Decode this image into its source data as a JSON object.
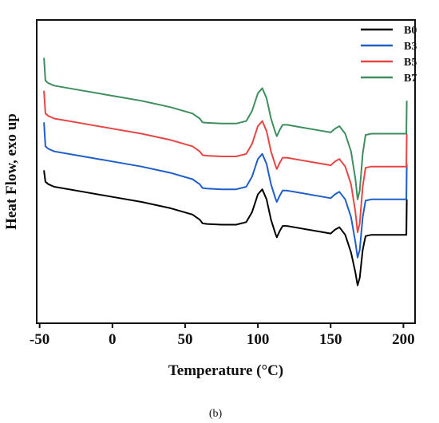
{
  "chart_data": {
    "type": "line",
    "xlabel": "Temperature (°C)",
    "ylabel": "Heat Flow, exo up",
    "xlim": [
      -52,
      208
    ],
    "xticks": [
      -50,
      0,
      50,
      100,
      150,
      200
    ],
    "xtick_labels": [
      "-50",
      "0",
      "50",
      "100",
      "150",
      "200"
    ],
    "yticks_shown": false,
    "grid": false,
    "legend_position": "top-right",
    "caption": "(b)",
    "series": [
      {
        "name": "B0",
        "color": "#000000",
        "x": [
          -47,
          -46,
          -44,
          -40,
          -20,
          0,
          20,
          40,
          55,
          60,
          62,
          65,
          75,
          85,
          92,
          96,
          100,
          103,
          106,
          109,
          112,
          113,
          115,
          117,
          120,
          130,
          145,
          150,
          153,
          156,
          160,
          164,
          167,
          168.5,
          170,
          172,
          174,
          178,
          190,
          202,
          202.3
        ],
        "y": [
          4.05,
          3.6,
          3.5,
          3.4,
          3.2,
          3.0,
          2.8,
          2.55,
          2.3,
          2.1,
          1.95,
          1.93,
          1.9,
          1.9,
          2.0,
          2.4,
          3.1,
          3.3,
          2.9,
          2.1,
          1.55,
          1.4,
          1.65,
          1.85,
          1.85,
          1.75,
          1.6,
          1.55,
          1.7,
          1.8,
          1.5,
          0.8,
          0.0,
          -0.5,
          -0.2,
          0.9,
          1.45,
          1.5,
          1.5,
          1.5,
          2.9
        ]
      },
      {
        "name": "B3",
        "color": "#1f5ec9",
        "x": [
          -47,
          -46,
          -44,
          -40,
          -20,
          0,
          20,
          40,
          55,
          60,
          62,
          65,
          75,
          85,
          92,
          96,
          100,
          103,
          106,
          109,
          112,
          113,
          115,
          117,
          120,
          130,
          145,
          150,
          153,
          156,
          160,
          164,
          167,
          168.5,
          170,
          172,
          174,
          178,
          190,
          202,
          202.3
        ],
        "y": [
          5.95,
          5.0,
          4.9,
          4.8,
          4.6,
          4.4,
          4.2,
          3.95,
          3.7,
          3.5,
          3.35,
          3.33,
          3.3,
          3.3,
          3.4,
          3.8,
          4.5,
          4.7,
          4.3,
          3.5,
          2.95,
          2.8,
          3.05,
          3.25,
          3.25,
          3.15,
          3.0,
          2.95,
          3.1,
          3.2,
          2.9,
          2.2,
          1.2,
          0.6,
          0.9,
          2.2,
          2.85,
          2.9,
          2.9,
          2.9,
          4.3
        ]
      },
      {
        "name": "B5",
        "color": "#e84545",
        "x": [
          -47,
          -46,
          -44,
          -40,
          -20,
          0,
          20,
          40,
          55,
          60,
          62,
          65,
          75,
          85,
          92,
          96,
          100,
          103,
          106,
          109,
          112,
          113,
          115,
          117,
          120,
          130,
          145,
          150,
          153,
          156,
          160,
          164,
          167,
          168.5,
          170,
          172,
          174,
          178,
          190,
          202,
          202.3
        ],
        "y": [
          7.2,
          6.3,
          6.2,
          6.1,
          5.9,
          5.7,
          5.5,
          5.25,
          5.0,
          4.8,
          4.65,
          4.63,
          4.6,
          4.6,
          4.7,
          5.1,
          5.8,
          6.0,
          5.6,
          4.8,
          4.25,
          4.1,
          4.35,
          4.55,
          4.55,
          4.45,
          4.3,
          4.25,
          4.4,
          4.5,
          4.2,
          3.5,
          2.4,
          1.6,
          1.95,
          3.4,
          4.15,
          4.2,
          4.2,
          4.2,
          5.5
        ]
      },
      {
        "name": "B7",
        "color": "#3e8e5f",
        "x": [
          -47,
          -46,
          -44,
          -40,
          -20,
          0,
          20,
          40,
          55,
          60,
          62,
          65,
          75,
          85,
          92,
          96,
          100,
          103,
          106,
          109,
          112,
          113,
          115,
          117,
          120,
          130,
          145,
          150,
          153,
          156,
          160,
          164,
          167,
          168.5,
          170,
          172,
          174,
          178,
          190,
          202,
          202.3
        ],
        "y": [
          8.5,
          7.6,
          7.5,
          7.4,
          7.2,
          7.0,
          6.8,
          6.55,
          6.3,
          6.1,
          5.95,
          5.93,
          5.9,
          5.9,
          6.0,
          6.4,
          7.1,
          7.3,
          6.9,
          6.1,
          5.55,
          5.4,
          5.65,
          5.85,
          5.85,
          5.75,
          5.6,
          5.55,
          5.7,
          5.8,
          5.5,
          4.8,
          3.7,
          2.9,
          3.25,
          4.7,
          5.45,
          5.5,
          5.5,
          5.5,
          6.8
        ]
      }
    ]
  }
}
